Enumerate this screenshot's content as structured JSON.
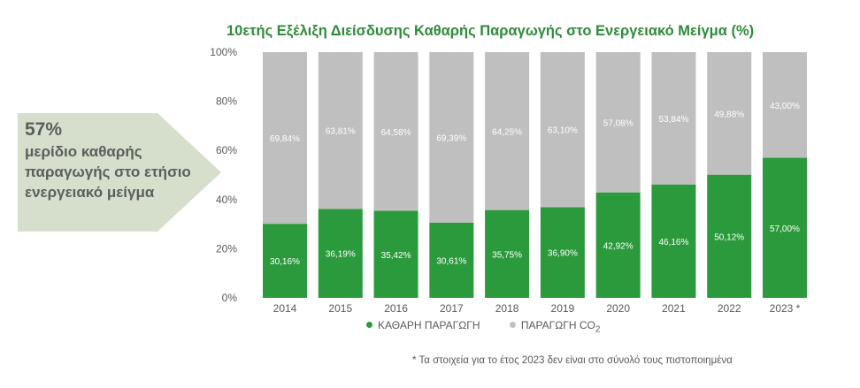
{
  "colors": {
    "clean": "#2b9a3c",
    "co2": "#c0bfbf",
    "title": "#2e8b3a",
    "callout_bg": "#d5dfcb",
    "callout_text": "#5b5f5b"
  },
  "callout": {
    "percent": "57%",
    "lines": [
      "μερίδιο καθαρής",
      "παραγωγής στο ετήσιο",
      "ενεργειακό μείγμα"
    ]
  },
  "legend": {
    "clean": "ΚΑΘΑΡΗ ΠΑΡΑΓΩΓΗ",
    "co2": "ΠΑΡΑΓΩΓΗ CO",
    "co2_sub": "2"
  },
  "footnote": "*  Τα στοιχεία για το έτος 2023 δεν είναι στο σύνολό τους πιστοποιημένα",
  "chart_data": {
    "type": "bar",
    "stacked": true,
    "title": "10ετής Εξέλιξη Διείσδυσης Καθαρής Παραγωγής στο Ενεργειακό Μείγμα (%)",
    "categories": [
      "2014",
      "2015",
      "2016",
      "2017",
      "2018",
      "2019",
      "2020",
      "2021",
      "2022",
      "2023 *"
    ],
    "series": [
      {
        "name": "ΚΑΘΑΡΗ ΠΑΡΑΓΩΓΗ",
        "values": [
          30.16,
          36.19,
          35.42,
          30.61,
          35.75,
          36.9,
          42.92,
          46.16,
          50.12,
          57.0
        ],
        "labels": [
          "30,16%",
          "36,19%",
          "35,42%",
          "30,61%",
          "35,75%",
          "36,90%",
          "42,92%",
          "46,16%",
          "50,12%",
          "57,00%"
        ]
      },
      {
        "name": "ΠΑΡΑΓΩΓΗ CO2",
        "values": [
          69.84,
          63.81,
          64.58,
          69.39,
          64.25,
          63.1,
          57.08,
          53.84,
          49.88,
          43.0
        ],
        "labels": [
          "69,84%",
          "63,81%",
          "64,58%",
          "69,39%",
          "64,25%",
          "63,10%",
          "57,08%",
          "53,84%",
          "49,88%",
          "43,00%"
        ]
      }
    ],
    "yticks": [
      "0%",
      "20%",
      "40%",
      "60%",
      "80%",
      "100%"
    ],
    "ylim": [
      0,
      100
    ],
    "xlabel": "",
    "ylabel": "",
    "grid": false,
    "legend": "bottom"
  }
}
